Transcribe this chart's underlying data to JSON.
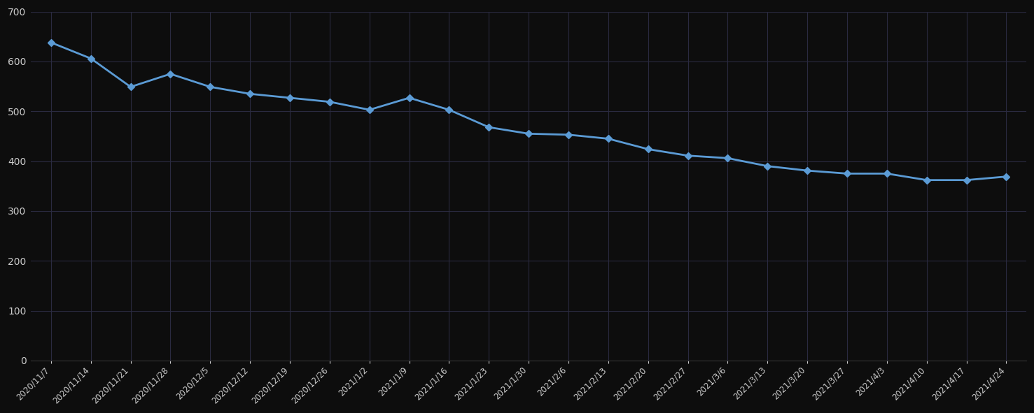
{
  "dates": [
    "2020/11/7",
    "2020/11/14",
    "2020/11/21",
    "2020/11/28",
    "2020/12/5",
    "2020/12/12",
    "2020/12/19",
    "2020/12/26",
    "2021/1/2",
    "2021/1/9",
    "2021/1/16",
    "2021/1/23",
    "2021/1/30",
    "2021/2/6",
    "2021/2/13",
    "2021/2/20",
    "2021/2/27",
    "2021/3/6",
    "2021/3/13",
    "2021/3/20",
    "2021/3/27",
    "2021/4/3",
    "2021/4/10",
    "2021/4/17",
    "2021/4/24"
  ],
  "values": [
    638,
    606,
    549,
    575,
    549,
    535,
    527,
    519,
    503,
    527,
    503,
    468,
    455,
    453,
    445,
    424,
    411,
    406,
    390,
    381,
    375,
    375,
    362,
    362,
    369
  ],
  "line_color": "#5B9BD5",
  "marker_color": "#5B9BD5",
  "background_color": "#0d0d0d",
  "plot_background": "#0d0d0d",
  "grid_color": "#2a2a40",
  "text_color": "#CCCCCC",
  "ylim": [
    0,
    700
  ],
  "yticks": [
    0,
    100,
    200,
    300,
    400,
    500,
    600,
    700
  ],
  "line_width": 2.0,
  "marker_size": 5,
  "tick_label_fontsize": 10,
  "xtick_label_fontsize": 8.5
}
